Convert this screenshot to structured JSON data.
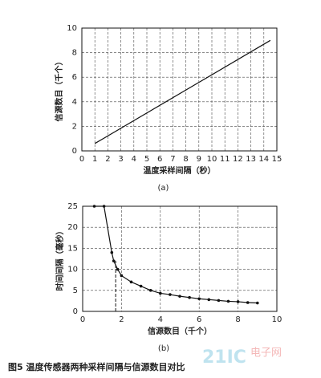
{
  "chart_data": [
    {
      "type": "line",
      "xlabel": "温度采样间隔（秒）",
      "ylabel": "信源数目（千个）",
      "sublabel": "(a)",
      "x": [
        1,
        14.5
      ],
      "series": [
        {
          "color": "#111111",
          "values": [
            0.6,
            9
          ],
          "markers": false
        }
      ],
      "xlim": [
        0,
        15
      ],
      "xticks": [
        0,
        1,
        2,
        3,
        4,
        5,
        6,
        7,
        8,
        9,
        10,
        11,
        12,
        13,
        14,
        15
      ],
      "ylim": [
        0,
        10
      ],
      "yticks": [
        0,
        2,
        4,
        6,
        8,
        10
      ],
      "grid": true
    },
    {
      "type": "line",
      "xlabel": "信源数目（千个）",
      "ylabel": "时间间隔（毫秒）",
      "sublabel": "(b)",
      "x": [
        0.6,
        1.1,
        1.5,
        1.6,
        1.8,
        2,
        2.5,
        3,
        3.5,
        4,
        4.5,
        5,
        5.5,
        6,
        6.5,
        7,
        7.5,
        8,
        8.5,
        9
      ],
      "series": [
        {
          "color": "#111111",
          "values": [
            25,
            25,
            14,
            12,
            10,
            8.5,
            7,
            6,
            5,
            4.3,
            4,
            3.6,
            3.3,
            3,
            2.8,
            2.6,
            2.4,
            2.3,
            2.1,
            2
          ],
          "markers": true
        }
      ],
      "vline": 1.7,
      "xlim": [
        0,
        10
      ],
      "xticks": [
        0,
        2,
        4,
        6,
        8,
        10
      ],
      "ylim": [
        0,
        25
      ],
      "yticks": [
        0,
        5,
        10,
        15,
        20,
        25
      ],
      "grid": true
    }
  ],
  "caption": "图5   温度传感器两种采样间隔与信源数目对比",
  "watermark": {
    "logo": "21IC",
    "site": "电子网"
  }
}
